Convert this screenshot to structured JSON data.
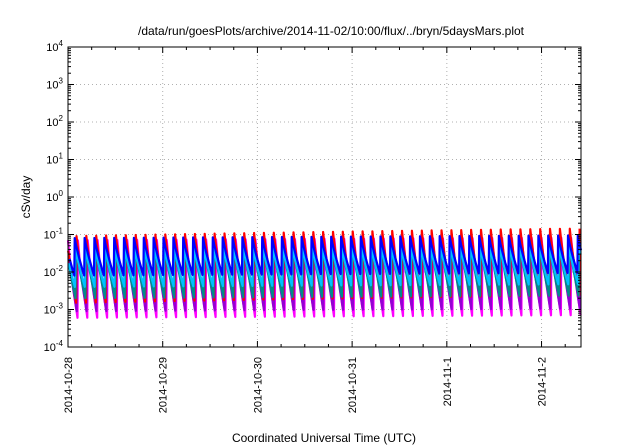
{
  "chart_data": {
    "type": "line",
    "title": "/data/run/goesPlots/archive/2014-11-02/10:00/flux/../bryn/5daysMars.plot",
    "xlabel": "Coordinated Universal Time (UTC)",
    "ylabel": "cSv/day",
    "yscale": "log",
    "ylim": [
      0.0001,
      10000
    ],
    "xlim": [
      "2014-10-28T00:00",
      "2014-11-02T10:00"
    ],
    "x_ticks": [
      "2014-10-28",
      "2014-10-29",
      "2014-10-30",
      "2014-10-31",
      "2014-11-1",
      "2014-11-2"
    ],
    "y_ticks": [
      {
        "base": "10",
        "exp": "-4",
        "value": 0.0001
      },
      {
        "base": "10",
        "exp": "-3",
        "value": 0.001
      },
      {
        "base": "10",
        "exp": "-2",
        "value": 0.01
      },
      {
        "base": "10",
        "exp": "-1",
        "value": 0.1
      },
      {
        "base": "10",
        "exp": "0",
        "value": 1
      },
      {
        "base": "10",
        "exp": "1",
        "value": 10
      },
      {
        "base": "10",
        "exp": "2",
        "value": 100
      },
      {
        "base": "10",
        "exp": "3",
        "value": 1000
      },
      {
        "base": "10",
        "exp": "4",
        "value": 10000
      }
    ],
    "grid": true,
    "sawtooth_period_hours": 2.5,
    "series": [
      {
        "color": "#ff00ff",
        "peak": 0.07,
        "trough": 0.0006,
        "phase_hours": 0.0
      },
      {
        "color": "#9400d3",
        "peak": 0.06,
        "trough": 0.0009,
        "phase_hours": 0.2
      },
      {
        "color": "#ff0000",
        "peak": 0.09,
        "trough": 0.0015,
        "phase_hours": 0.35
      },
      {
        "color": "#008b8b",
        "peak": 0.05,
        "trough": 0.002,
        "phase_hours": 0.5
      },
      {
        "color": "#00bfff",
        "peak": 0.045,
        "trough": 0.004,
        "phase_hours": 0.65
      },
      {
        "color": "#0000ff",
        "peak": 0.08,
        "trough": 0.008,
        "phase_hours": 0.8
      }
    ]
  }
}
